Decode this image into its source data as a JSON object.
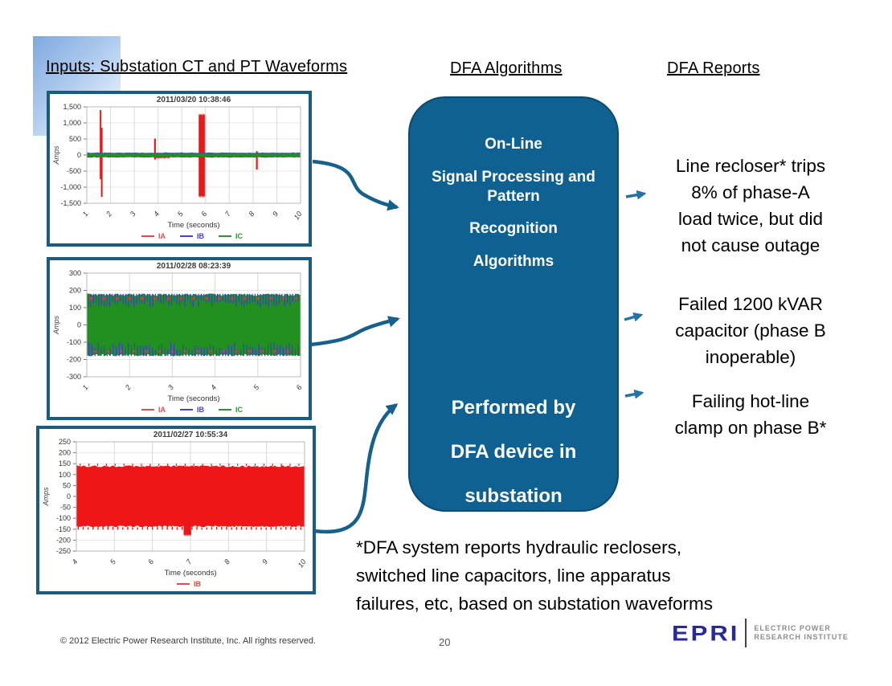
{
  "slide": {
    "headings": {
      "inputs": "Inputs: Substation CT and PT Waveforms",
      "algorithms": "DFA Algorithms",
      "reports": "DFA Reports"
    },
    "algorithm_box": {
      "fill": "#0e6190",
      "top_lines": [
        "On-Line",
        "Signal Processing and Pattern",
        "Recognition",
        "Algorithms"
      ],
      "bottom_lines": [
        "Performed by",
        "DFA device in",
        "substation"
      ]
    },
    "reports": [
      "Line recloser* trips\n8% of phase-A\nload twice, but did\nnot cause outage",
      "Failed 1200 kVAR\ncapacitor (phase B\ninoperable)",
      "Failing hot-line\nclamp on phase B*"
    ],
    "footnote": "*DFA system reports hydraulic reclosers,\nswitched line capacitors, line apparatus\nfailures, etc, based on substation waveforms",
    "footer": {
      "copyright": "© 2012 Electric Power Research Institute, Inc. All rights reserved.",
      "page_number": "20",
      "logo": {
        "brand": "EPRI",
        "tagline_line1": "ELECTRIC POWER",
        "tagline_line2": "RESEARCH INSTITUTE"
      }
    },
    "colors": {
      "accent_blue": "#16618c",
      "panel_border": "#1a5b80",
      "arrow_small": "#2572a7",
      "box_fill": "#0e6190"
    }
  },
  "chart_data": [
    {
      "type": "line",
      "title": "2011/03/20 10:38:46",
      "xlabel": "Time (seconds)",
      "ylabel": "Amps",
      "xlim": [
        1,
        10
      ],
      "ylim": [
        -1500,
        1500
      ],
      "xticks": [
        1,
        2,
        3,
        4,
        5,
        6,
        7,
        8,
        9,
        10
      ],
      "yticks": [
        {
          "value": 1500,
          "label": "1,500"
        },
        {
          "value": 1000,
          "label": "1,000"
        },
        {
          "value": 500,
          "label": "500"
        },
        {
          "value": 0,
          "label": "0"
        },
        {
          "value": -500,
          "label": "-500"
        },
        {
          "value": -1000,
          "label": "-1,000"
        },
        {
          "value": -1500,
          "label": "-1,500"
        }
      ],
      "legend": [
        {
          "label": "IA",
          "color": "#d94f4f"
        },
        {
          "label": "IB",
          "color": "#4343cf"
        },
        {
          "label": "IC",
          "color": "#2f9331"
        }
      ],
      "description": "Steady three-phase load around ±60 A with phase-A (red) fault current spikes near t=1.6 s (±1400 A), t=3.9 s (+500 A), t=5.7-6.0 s (±1300 A) and t=8.2 s (-450 A)",
      "marks": [
        {
          "type": "vspike",
          "color": "#ee1616",
          "x": 1.58,
          "yTop": 1400,
          "yBot": -750,
          "w": 2
        },
        {
          "type": "vspike",
          "color": "#ee1616",
          "x": 1.63,
          "yTop": 850,
          "yBot": -1300,
          "w": 2
        },
        {
          "type": "vspike",
          "color": "#ee1616",
          "x": 3.87,
          "yTop": 510,
          "yBot": -140,
          "w": 2.2
        },
        {
          "type": "hband",
          "color": "#ee1616",
          "x1": 3.9,
          "x2": 4.5,
          "yTop": 60,
          "yBot": -115,
          "jag": 45,
          "seed": 5
        },
        {
          "type": "hband",
          "color": "#ee1616",
          "x1": 5.71,
          "x2": 5.97,
          "yTop": 1310,
          "yBot": -1345,
          "jag": 90,
          "seed": 9
        },
        {
          "type": "vspike",
          "color": "#ee1616",
          "x": 8.16,
          "yTop": 120,
          "yBot": -450,
          "w": 2.2
        },
        {
          "type": "hband",
          "color": "#ee1616",
          "x1": 8.18,
          "x2": 8.62,
          "yTop": 75,
          "yBot": -70,
          "jag": 30,
          "seed": 13
        },
        {
          "type": "hband",
          "color": "#4343cf",
          "x1": 1,
          "x2": 10,
          "yTop": 80,
          "yBot": -80,
          "jag": 16,
          "seed": 7
        },
        {
          "type": "hband",
          "color": "#22901f",
          "x1": 1,
          "x2": 10,
          "yTop": 58,
          "yBot": -58,
          "jag": 9,
          "seed": 3
        }
      ]
    },
    {
      "type": "line",
      "title": "2011/02/28 08:23:39",
      "xlabel": "Time (seconds)",
      "ylabel": "Amps",
      "xlim": [
        1,
        6
      ],
      "ylim": [
        -300,
        300
      ],
      "xticks": [
        1,
        2,
        3,
        4,
        5,
        6
      ],
      "yticks": [
        {
          "value": 300,
          "label": "300"
        },
        {
          "value": 200,
          "label": "200"
        },
        {
          "value": 100,
          "label": "100"
        },
        {
          "value": 0,
          "label": "0"
        },
        {
          "value": -100,
          "label": "-100"
        },
        {
          "value": -200,
          "label": "-200"
        },
        {
          "value": -300,
          "label": "-300"
        }
      ],
      "legend": [
        {
          "label": "IA",
          "color": "#d94f4f"
        },
        {
          "label": "IB",
          "color": "#4343cf"
        },
        {
          "label": "IC",
          "color": "#2f9331"
        }
      ],
      "description": "Dense three-phase band around ±180 A with periodic phase-B (blue) notches to ±100 A and red marks near ±150 A from failed capacitor switching",
      "marks": [
        {
          "type": "hband",
          "color": "#22901f",
          "x1": 1,
          "x2": 6,
          "yTop": 182,
          "yBot": -182,
          "jag": 14,
          "seed": 2
        },
        {
          "type": "vtrain",
          "color": "#3b3bd0",
          "x1": 1.03,
          "x2": 6,
          "period": 0.063,
          "yTop": 180,
          "yBot": 100,
          "w": 1.2,
          "vary": 45,
          "seed": 6
        },
        {
          "type": "vtrain",
          "color": "#3b3bd0",
          "x1": 1.05,
          "x2": 6,
          "period": 0.071,
          "yTop": -100,
          "yBot": -180,
          "w": 1.2,
          "vary": -45,
          "seed": 16
        },
        {
          "type": "vtrain",
          "color": "#d83c3c",
          "x1": 1.1,
          "x2": 6,
          "period": 0.3,
          "yTop": 160,
          "yBot": 146,
          "w": 3,
          "vary": 0,
          "seed": 4
        },
        {
          "type": "vtrain",
          "color": "#d83c3c",
          "x1": 1.2,
          "x2": 6,
          "period": 0.3,
          "yTop": -146,
          "yBot": -160,
          "w": 3,
          "vary": 0,
          "seed": 14
        }
      ]
    },
    {
      "type": "line",
      "title": "2011/02/27 10:55:34",
      "xlabel": "Time (seconds)",
      "ylabel": "Amps",
      "xlim": [
        4,
        10
      ],
      "ylim": [
        -250,
        250
      ],
      "xticks": [
        4,
        5,
        6,
        7,
        8,
        9,
        10
      ],
      "yticks": [
        {
          "value": 250,
          "label": "250"
        },
        {
          "value": 200,
          "label": "200"
        },
        {
          "value": 150,
          "label": "150"
        },
        {
          "value": 100,
          "label": "100"
        },
        {
          "value": 50,
          "label": "50"
        },
        {
          "value": 0,
          "label": "0"
        },
        {
          "value": -50,
          "label": "-50"
        },
        {
          "value": -100,
          "label": "-100"
        },
        {
          "value": -150,
          "label": "-150"
        },
        {
          "value": -200,
          "label": "-200"
        },
        {
          "value": -250,
          "label": "-250"
        }
      ],
      "legend": [
        {
          "label": "IB",
          "color": "#d94f4f"
        }
      ],
      "description": "Phase-B current: dense ±145 A band with a transient dip to about -190 A near t=6.9 s (failing hot-line clamp)",
      "marks": [
        {
          "type": "hband",
          "color": "#ee1616",
          "x1": 4,
          "x2": 10,
          "yTop": 142,
          "yBot": -141,
          "jag": 8,
          "seed": 8
        },
        {
          "type": "vtrain",
          "color": "#ee1616",
          "x1": 4.05,
          "x2": 10,
          "period": 0.13,
          "yTop": -138,
          "yBot": -152,
          "w": 1.4,
          "vary": -4,
          "seed": 18
        },
        {
          "type": "vtrain",
          "color": "#ee1616",
          "x1": 4.1,
          "x2": 10,
          "period": 0.23,
          "yTop": 150,
          "yBot": 138,
          "w": 1.2,
          "vary": 3,
          "seed": 19
        },
        {
          "type": "hband",
          "color": "#ee1616",
          "x1": 6.82,
          "x2": 7.02,
          "yTop": -125,
          "yBot": -185,
          "jag": 12,
          "seed": 12
        }
      ]
    }
  ]
}
